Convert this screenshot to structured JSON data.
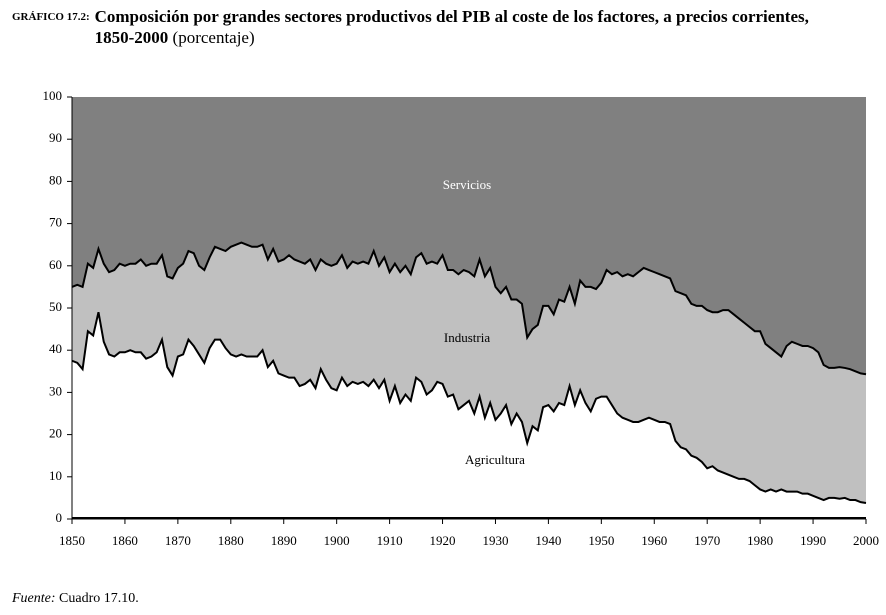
{
  "chart_data": {
    "type": "stacked_area",
    "title_label": "GRÁFICO 17.2:",
    "title": "Composición por grandes sectores productivos del PIB al coste de los factores, a precios corrientes, 1850-2000",
    "subtitle": "(porcentaje)",
    "source_label": "Fuente:",
    "source": "Cuadro 17.10.",
    "x": [
      1850,
      1851,
      1852,
      1853,
      1854,
      1855,
      1856,
      1857,
      1858,
      1859,
      1860,
      1861,
      1862,
      1863,
      1864,
      1865,
      1866,
      1867,
      1868,
      1869,
      1870,
      1871,
      1872,
      1873,
      1874,
      1875,
      1876,
      1877,
      1878,
      1879,
      1880,
      1881,
      1882,
      1883,
      1884,
      1885,
      1886,
      1887,
      1888,
      1889,
      1890,
      1891,
      1892,
      1893,
      1894,
      1895,
      1896,
      1897,
      1898,
      1899,
      1900,
      1901,
      1902,
      1903,
      1904,
      1905,
      1906,
      1907,
      1908,
      1909,
      1910,
      1911,
      1912,
      1913,
      1914,
      1915,
      1916,
      1917,
      1918,
      1919,
      1920,
      1921,
      1922,
      1923,
      1924,
      1925,
      1926,
      1927,
      1928,
      1929,
      1930,
      1931,
      1932,
      1933,
      1934,
      1935,
      1936,
      1937,
      1938,
      1939,
      1940,
      1941,
      1942,
      1943,
      1944,
      1945,
      1946,
      1947,
      1948,
      1949,
      1950,
      1951,
      1952,
      1953,
      1954,
      1955,
      1956,
      1957,
      1958,
      1959,
      1960,
      1961,
      1962,
      1963,
      1964,
      1965,
      1966,
      1967,
      1968,
      1969,
      1970,
      1971,
      1972,
      1973,
      1974,
      1975,
      1976,
      1977,
      1978,
      1979,
      1980,
      1981,
      1982,
      1983,
      1984,
      1985,
      1986,
      1987,
      1988,
      1989,
      1990,
      1991,
      1992,
      1993,
      1994,
      1995,
      1996,
      1997,
      1998,
      1999,
      2000
    ],
    "series": [
      {
        "name": "Agricultura",
        "color": "#ffffff",
        "values": [
          37.5,
          37,
          35.5,
          44.5,
          43.5,
          49,
          42,
          39,
          38.5,
          39.5,
          39.5,
          40,
          39.5,
          39.5,
          38,
          38.5,
          39.5,
          42.5,
          36,
          34,
          38.5,
          39,
          42.5,
          41,
          39,
          37,
          40.5,
          42.5,
          42.5,
          40.5,
          39,
          38.5,
          39,
          38.5,
          38.5,
          38.5,
          40,
          36,
          37.5,
          34.5,
          34,
          33.5,
          33.5,
          31.5,
          32,
          33,
          31,
          35.5,
          33,
          31,
          30.5,
          33.5,
          31.5,
          32.5,
          32,
          32.5,
          31.5,
          33,
          31,
          33,
          28,
          31.5,
          27.5,
          29.5,
          28,
          33.5,
          32.5,
          29.5,
          30.5,
          32.5,
          32,
          29,
          29.5,
          26,
          27,
          28,
          25,
          29,
          24,
          27.5,
          23.5,
          25,
          27,
          22.5,
          25,
          23,
          18,
          22,
          21,
          26.5,
          27,
          25.5,
          27.5,
          27,
          31.5,
          27,
          30.5,
          27.5,
          25.5,
          28.5,
          29,
          29,
          27,
          25,
          24,
          23.5,
          23,
          23,
          23.5,
          24,
          23.5,
          23,
          23,
          22.5,
          18.5,
          17,
          16.5,
          15,
          14.5,
          13.5,
          12,
          12.5,
          11.5,
          11,
          10.5,
          10,
          9.5,
          9.5,
          9,
          8,
          7,
          6.5,
          7,
          6.5,
          7,
          6.5,
          6.5,
          6.5,
          6,
          6,
          5.5,
          5,
          4.5,
          5,
          5,
          4.8,
          5,
          4.5,
          4.5,
          4,
          3.8
        ]
      },
      {
        "name": "Industria",
        "color": "#c0c0c0",
        "values": [
          17.5,
          18.5,
          19.5,
          16,
          16,
          15,
          18.5,
          19.5,
          20.5,
          21,
          20.5,
          20.5,
          21,
          22,
          22,
          22,
          21,
          20,
          21.5,
          23,
          21,
          21.5,
          21,
          22,
          21,
          22,
          21.5,
          22,
          21.5,
          23,
          25.5,
          26.5,
          26.5,
          26.5,
          26,
          26,
          25,
          25.5,
          26.5,
          26.5,
          27.5,
          29,
          28,
          29.5,
          28.5,
          28.5,
          28,
          26,
          27.5,
          29,
          30,
          29,
          28,
          28.5,
          28.5,
          28.5,
          29,
          30.5,
          29,
          29,
          30.5,
          29,
          31,
          30.5,
          30,
          28.5,
          30.5,
          31,
          30.5,
          28,
          30.5,
          30,
          29.5,
          32,
          32,
          30.5,
          32.5,
          32.5,
          33.5,
          32,
          31.5,
          28.5,
          28,
          29.5,
          27,
          28,
          25,
          23,
          25,
          24,
          23.5,
          23,
          24.5,
          24.5,
          23.5,
          24,
          26,
          27.5,
          29.5,
          26,
          27,
          30,
          31,
          33.5,
          33.5,
          34.5,
          34.5,
          35.5,
          36,
          35,
          35,
          35,
          34.5,
          34.5,
          35.5,
          36.5,
          36.5,
          36,
          36,
          37,
          37.5,
          36.5,
          37.5,
          38.5,
          39,
          38.5,
          38,
          37,
          36.5,
          36.5,
          37.5,
          35,
          33.5,
          33,
          31.5,
          34.5,
          35.5,
          35,
          35,
          35,
          35,
          34.5,
          32,
          30.8,
          30.8,
          31.2,
          30.8,
          31,
          30.5,
          30.5,
          30.5
        ]
      },
      {
        "name": "Servicios",
        "color": "#808080",
        "values": [
          45,
          44.5,
          45,
          39.5,
          40.5,
          36,
          39.5,
          41.5,
          41,
          39.5,
          40,
          39.5,
          39.5,
          38.5,
          40,
          39.5,
          39.5,
          37.5,
          42.5,
          43,
          40.5,
          39.5,
          36.5,
          37,
          40,
          41,
          38,
          35.5,
          36,
          36.5,
          35.5,
          35,
          34.5,
          35,
          35.5,
          35.5,
          35,
          38.5,
          36,
          39,
          38.5,
          37.5,
          38.5,
          39,
          39.5,
          38.5,
          41,
          38.5,
          39.5,
          40,
          39.5,
          37.5,
          40.5,
          39,
          39.5,
          39,
          39.5,
          36.5,
          40,
          38,
          41.5,
          39.5,
          41.5,
          40,
          42,
          38,
          37,
          39.5,
          39,
          39.5,
          37.5,
          41,
          41,
          42,
          41,
          41.5,
          42.5,
          38.5,
          42.5,
          40.5,
          45,
          46.5,
          45,
          48,
          48,
          49,
          57,
          55,
          54,
          49.5,
          49.5,
          51.5,
          48,
          48.5,
          45,
          49,
          43.5,
          45,
          45,
          45.5,
          44,
          41,
          42,
          41.5,
          42.5,
          42,
          42.5,
          41.5,
          40.5,
          41,
          41.5,
          42,
          42.5,
          43,
          46,
          46.5,
          47,
          49,
          49.5,
          49.5,
          50.5,
          51,
          51,
          50.5,
          50.5,
          51.5,
          52.5,
          53.5,
          54.5,
          55.5,
          55.5,
          58.5,
          59.5,
          60.5,
          61.5,
          59,
          58,
          58.5,
          59,
          59,
          59.5,
          60.5,
          63.5,
          64.2,
          64.2,
          64,
          64.2,
          64.5,
          65,
          65.5,
          65.7
        ]
      }
    ],
    "xlim": [
      1850,
      2000
    ],
    "xticks": [
      1850,
      1860,
      1870,
      1880,
      1890,
      1900,
      1910,
      1920,
      1930,
      1940,
      1950,
      1960,
      1970,
      1980,
      1990,
      2000
    ],
    "ylim": [
      0,
      100
    ],
    "yticks": [
      0,
      10,
      20,
      30,
      40,
      50,
      60,
      70,
      80,
      90,
      100
    ],
    "line_color": "#000000"
  }
}
